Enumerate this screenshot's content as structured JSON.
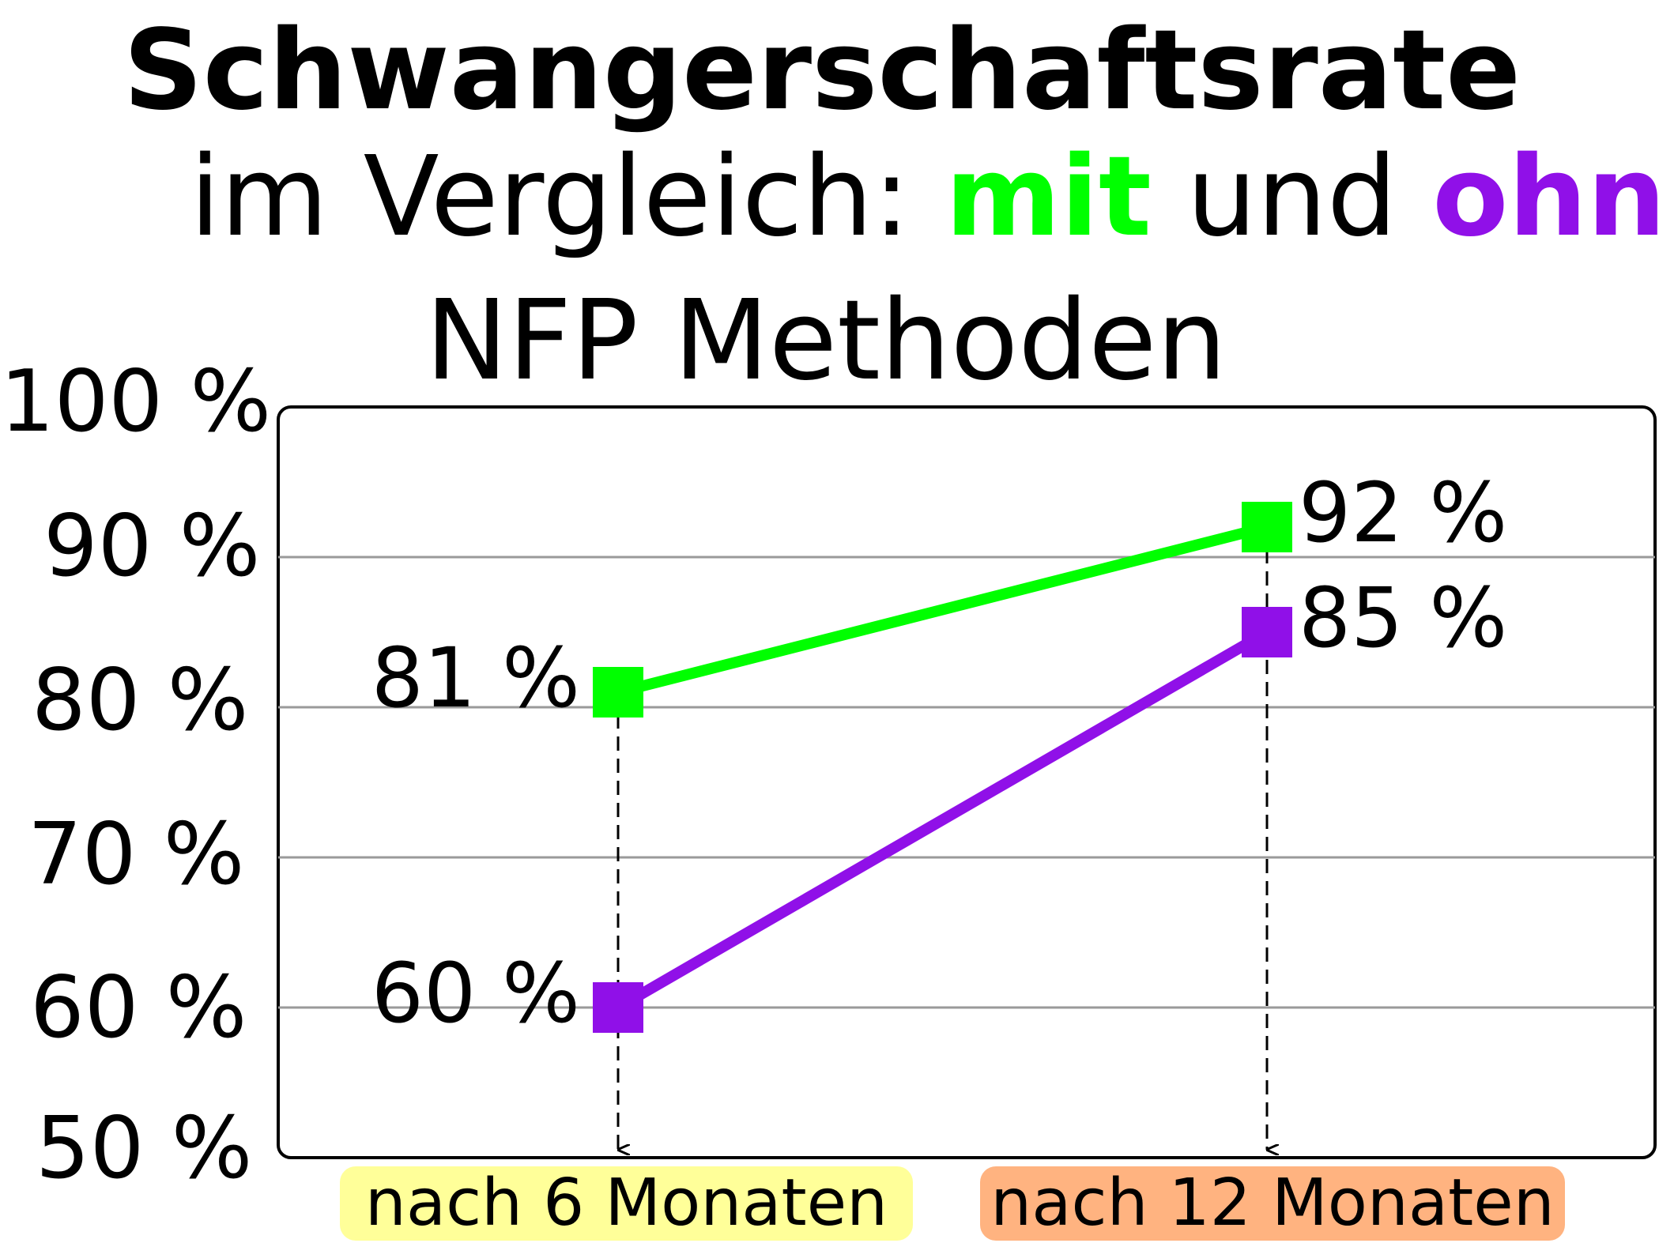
{
  "title": {
    "line1": "Schwangerschaftsrate",
    "line2_prefix": "im Vergleich: ",
    "line2_mit": "mit",
    "line2_mid": " und ",
    "line2_ohne": "ohne",
    "line3": "NFP Methoden"
  },
  "colors": {
    "mit": "#00ff00",
    "ohne": "#9010e8",
    "cat1_bg": "#ffff99",
    "cat2_bg": "#ffb380"
  },
  "chart_data": {
    "type": "line",
    "categories": [
      "nach 6 Monaten",
      "nach 12 Monaten"
    ],
    "series": [
      {
        "key": "mit",
        "values": [
          81,
          92
        ],
        "labels": [
          "81 %",
          "92 %"
        ]
      },
      {
        "key": "ohne",
        "values": [
          60,
          85
        ],
        "labels": [
          "60 %",
          "85 %"
        ]
      }
    ],
    "yticks": [
      "100 %",
      "90 %",
      "80 %",
      "70 %",
      "60 %",
      "50 %"
    ],
    "ylim": [
      50,
      100
    ],
    "grid": true
  }
}
